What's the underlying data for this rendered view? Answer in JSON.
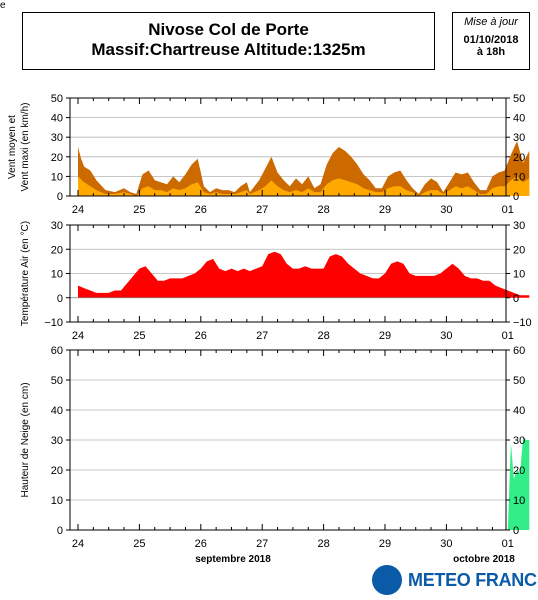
{
  "header": {
    "station": "Nivose Col de Porte",
    "massif": "Massif:Chartreuse Altitude:1325m",
    "update_label": "Mise à jour",
    "update_date": "01/10/2018",
    "update_hour": "à 18h",
    "corner_mark": "e"
  },
  "brand": {
    "name": "METEO FRANCE"
  },
  "chart_data": [
    {
      "type": "area",
      "ylabel_line1": "Vent moyen et",
      "ylabel_line2": "Vent maxi (en km/h)",
      "ylim": [
        0,
        50
      ],
      "yticks": [
        0,
        10,
        20,
        30,
        40,
        50
      ],
      "x_ticks": [
        "24",
        "25",
        "26",
        "27",
        "28",
        "29",
        "30",
        "01"
      ],
      "grid": true,
      "series": [
        {
          "color": "#cc6a00",
          "x": [
            0,
            0.05,
            0.1,
            0.2,
            0.3,
            0.45,
            0.6,
            0.75,
            0.85,
            0.95,
            1.05,
            1.15,
            1.25,
            1.35,
            1.45,
            1.55,
            1.65,
            1.75,
            1.85,
            1.95,
            2.05,
            2.15,
            2.25,
            2.35,
            2.45,
            2.55,
            2.65,
            2.75,
            2.8,
            2.95,
            3.05,
            3.15,
            3.25,
            3.35,
            3.45,
            3.55,
            3.65,
            3.75,
            3.85,
            3.95,
            4.05,
            4.15,
            4.25,
            4.35,
            4.45,
            4.55,
            4.65,
            4.75,
            4.85,
            4.95,
            5.05,
            5.15,
            5.25,
            5.35,
            5.45,
            5.55,
            5.65,
            5.75,
            5.85,
            5.95,
            6.05,
            6.15,
            6.25,
            6.35,
            6.45,
            6.55,
            6.65,
            6.75,
            6.85,
            6.95,
            7.05,
            7.15,
            7.25,
            7.35
          ],
          "y": [
            25,
            19,
            15,
            13,
            8,
            3,
            2,
            4,
            2,
            1,
            11,
            13,
            8,
            7,
            6,
            10,
            7,
            11,
            16,
            19,
            5,
            2,
            4,
            3,
            3,
            2,
            5,
            7,
            2,
            8,
            14,
            20,
            12,
            8,
            5,
            9,
            6,
            10,
            4,
            6,
            16,
            22,
            25,
            23,
            20,
            16,
            11,
            8,
            4,
            4,
            10,
            12,
            13,
            8,
            4,
            1,
            6,
            9,
            7,
            2,
            7,
            12,
            11,
            12,
            7,
            3,
            3,
            10,
            12,
            13,
            21,
            28,
            17,
            23
          ]
        },
        {
          "color": "#ffa800",
          "x": [
            0,
            0.1,
            0.2,
            0.3,
            0.45,
            0.6,
            0.75,
            0.85,
            0.95,
            1.05,
            1.15,
            1.25,
            1.35,
            1.45,
            1.55,
            1.65,
            1.75,
            1.85,
            1.95,
            2.05,
            2.15,
            2.25,
            2.35,
            2.45,
            2.55,
            2.65,
            2.75,
            2.8,
            2.95,
            3.05,
            3.15,
            3.25,
            3.35,
            3.45,
            3.55,
            3.65,
            3.75,
            3.85,
            3.95,
            4.05,
            4.15,
            4.25,
            4.35,
            4.45,
            4.55,
            4.65,
            4.75,
            4.85,
            4.95,
            5.05,
            5.15,
            5.25,
            5.35,
            5.45,
            5.55,
            5.65,
            5.75,
            5.85,
            5.95,
            6.05,
            6.15,
            6.25,
            6.35,
            6.45,
            6.55,
            6.65,
            6.75,
            6.85,
            6.95,
            7.05,
            7.15,
            7.25,
            7.35
          ],
          "y": [
            10,
            7,
            5,
            3,
            1,
            1,
            2,
            1,
            0,
            4,
            5,
            3,
            3,
            2,
            4,
            3,
            4,
            6,
            7,
            2,
            1,
            2,
            1,
            1,
            1,
            2,
            3,
            1,
            3,
            5,
            8,
            5,
            3,
            2,
            3,
            2,
            4,
            2,
            2,
            6,
            8,
            9,
            8,
            7,
            6,
            4,
            3,
            2,
            2,
            4,
            5,
            5,
            3,
            2,
            0,
            2,
            3,
            3,
            1,
            3,
            5,
            4,
            5,
            3,
            1,
            1,
            4,
            5,
            5,
            8,
            10,
            7,
            9
          ]
        }
      ]
    },
    {
      "type": "area",
      "ylabel": "Température Air (en °C)",
      "ylim": [
        -10,
        30
      ],
      "yticks": [
        -10,
        0,
        10,
        20,
        30
      ],
      "x_ticks": [
        "24",
        "25",
        "26",
        "27",
        "28",
        "29",
        "30",
        "01"
      ],
      "grid": true,
      "series": [
        {
          "color": "#ff0000",
          "x": [
            0,
            0.1,
            0.2,
            0.3,
            0.4,
            0.5,
            0.6,
            0.7,
            0.8,
            0.9,
            1.0,
            1.1,
            1.2,
            1.3,
            1.4,
            1.5,
            1.6,
            1.7,
            1.8,
            1.9,
            2.0,
            2.1,
            2.2,
            2.3,
            2.4,
            2.5,
            2.6,
            2.7,
            2.8,
            2.9,
            3.0,
            3.1,
            3.2,
            3.3,
            3.4,
            3.5,
            3.6,
            3.7,
            3.8,
            3.9,
            4.0,
            4.1,
            4.2,
            4.3,
            4.4,
            4.5,
            4.6,
            4.7,
            4.8,
            4.9,
            5.0,
            5.1,
            5.2,
            5.3,
            5.4,
            5.5,
            5.6,
            5.7,
            5.8,
            5.9,
            6.0,
            6.1,
            6.2,
            6.3,
            6.4,
            6.5,
            6.6,
            6.7,
            6.8,
            6.9,
            7.0,
            7.1,
            7.2,
            7.3,
            7.35
          ],
          "y": [
            5,
            4,
            3,
            2,
            2,
            2,
            3,
            3,
            6,
            9,
            12,
            13,
            10,
            7,
            7,
            8,
            8,
            8,
            9,
            10,
            12,
            15,
            16,
            12,
            11,
            12,
            11,
            12,
            11,
            12,
            13,
            18,
            19,
            18,
            14,
            12,
            12,
            13,
            12,
            12,
            12,
            17,
            18,
            17,
            14,
            12,
            10,
            9,
            8,
            8,
            10,
            14,
            15,
            14,
            10,
            9,
            9,
            9,
            9,
            10,
            12,
            14,
            12,
            9,
            8,
            8,
            7,
            7,
            5,
            4,
            3,
            2,
            1,
            1,
            1
          ]
        }
      ]
    },
    {
      "type": "area",
      "ylabel": "Hauteur de Neige (en cm)",
      "ylim": [
        0,
        60
      ],
      "yticks": [
        0,
        10,
        20,
        30,
        40,
        50,
        60
      ],
      "x_ticks": [
        "24",
        "25",
        "26",
        "27",
        "28",
        "29",
        "30",
        "01"
      ],
      "xlabel_month1": "septembre 2018",
      "xlabel_month2": "octobre 2018",
      "grid": true,
      "series": [
        {
          "color": "#33ee88",
          "x": [
            0,
            7.0,
            7.05,
            7.1,
            7.15,
            7.2,
            7.25,
            7.3,
            7.35
          ],
          "y": [
            0,
            0,
            29,
            17,
            20,
            19,
            31,
            30,
            30
          ]
        }
      ]
    }
  ]
}
